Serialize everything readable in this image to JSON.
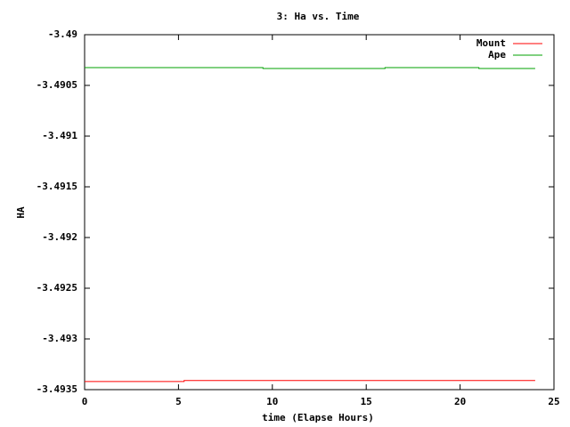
{
  "chart_data": {
    "type": "line",
    "title": "3: Ha vs. Time",
    "xlabel": "time (Elapse Hours)",
    "ylabel": "HA",
    "xlim": [
      0,
      25
    ],
    "xticks": [
      0,
      5,
      10,
      15,
      20,
      25
    ],
    "ylim": [
      -3.4935,
      -3.49
    ],
    "yticks": [
      -3.49,
      -3.4905,
      -3.491,
      -3.4915,
      -3.492,
      -3.4925,
      -3.493,
      -3.4935
    ],
    "legend": "top-right",
    "series": [
      {
        "name": "Mount",
        "color": "#ff0000",
        "x": [
          0,
          5.3,
          5.3,
          24
        ],
        "values": [
          -3.49342,
          -3.49342,
          -3.49341,
          -3.49341
        ]
      },
      {
        "name": "Ape",
        "color": "#00a000",
        "x": [
          0,
          9.5,
          9.5,
          16,
          16,
          21,
          21,
          24
        ],
        "values": [
          -3.490325,
          -3.490325,
          -3.490333,
          -3.490333,
          -3.490325,
          -3.490325,
          -3.490333,
          -3.490333
        ]
      }
    ]
  }
}
